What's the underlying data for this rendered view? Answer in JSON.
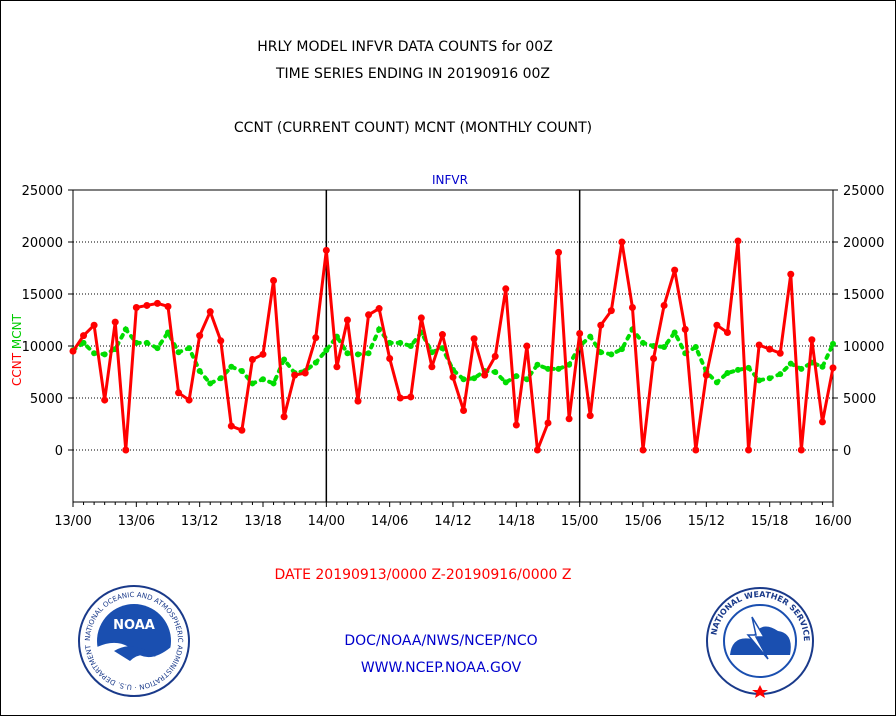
{
  "header": {
    "title_line1": "HRLY MODEL INFVR DATA COUNTS for 00Z",
    "title_line2": "TIME SERIES ENDING IN 20190916 00Z",
    "subtitle": "CCNT (CURRENT COUNT) MCNT (MONTHLY COUNT)"
  },
  "footer": {
    "date_range": "DATE 20190913/0000 Z-20190916/0000 Z",
    "org_line": "DOC/NOAA/NWS/NCEP/NCO",
    "url_line": "WWW.NCEP.NOAA.GOV",
    "noaa_logo_text": "NOAA",
    "noaa_ring_text": "NATIONAL OCEANIC AND ATMOSPHERIC ADMINISTRATION · U.S. DEPARTMENT OF COMMERCE",
    "nws_ring_text": "NATIONAL WEATHER SERVICE"
  },
  "colors": {
    "ccnt": "#ff0000",
    "mcnt": "#00dd00",
    "label_blue": "#0000cc",
    "date_red": "#ff0000"
  },
  "chart_data": {
    "type": "line",
    "title": "INFVR",
    "ylabel_left_ccnt": "CCNT",
    "ylabel_left_mcnt": "MCNT",
    "ylim": [
      -5000,
      25000
    ],
    "yticks": [
      0,
      5000,
      10000,
      15000,
      20000,
      25000
    ],
    "xlim": [
      0,
      72
    ],
    "x_ticks": [
      {
        "x": 0,
        "label": "13/00"
      },
      {
        "x": 6,
        "label": "13/06"
      },
      {
        "x": 12,
        "label": "13/12"
      },
      {
        "x": 18,
        "label": "13/18"
      },
      {
        "x": 24,
        "label": "14/00"
      },
      {
        "x": 30,
        "label": "14/06"
      },
      {
        "x": 36,
        "label": "14/12"
      },
      {
        "x": 42,
        "label": "14/18"
      },
      {
        "x": 48,
        "label": "15/00"
      },
      {
        "x": 54,
        "label": "15/06"
      },
      {
        "x": 60,
        "label": "15/12"
      },
      {
        "x": 66,
        "label": "15/18"
      },
      {
        "x": 72,
        "label": "16/00"
      }
    ],
    "day_boundaries": [
      24,
      48
    ],
    "grid": true,
    "series": [
      {
        "name": "CCNT",
        "style": "solid",
        "values": [
          9500,
          11000,
          12000,
          4800,
          12300,
          0,
          13700,
          13900,
          14100,
          13800,
          5500,
          4800,
          11000,
          13300,
          10500,
          2300,
          1900,
          8700,
          9200,
          16300,
          3200,
          7200,
          7400,
          10800,
          19200,
          8000,
          12500,
          4700,
          13000,
          13600,
          8800,
          5000,
          5100,
          12700,
          8000,
          11100,
          7000,
          3800,
          10700,
          7200,
          9000,
          15500,
          2400,
          10000,
          0,
          2600,
          19000,
          3000,
          11200,
          3300,
          12000,
          13400,
          20000,
          13700,
          0,
          8800,
          13900,
          17300,
          11600,
          0,
          7200,
          12000,
          11300,
          20100,
          0,
          10100,
          9700,
          9300,
          16900,
          0,
          10600,
          2700,
          7900
        ]
      },
      {
        "name": "MCNT",
        "style": "dotted",
        "values": [
          9600,
          10300,
          9300,
          9200,
          9700,
          11600,
          10300,
          10300,
          9800,
          11300,
          9400,
          9800,
          7600,
          6400,
          6900,
          8000,
          7600,
          6400,
          6800,
          6400,
          8700,
          7400,
          7600,
          8400,
          9600,
          10900,
          9300,
          9200,
          9300,
          11600,
          10300,
          10300,
          10000,
          11300,
          9400,
          9800,
          7700,
          6800,
          6900,
          7600,
          7500,
          6500,
          7100,
          6800,
          8200,
          7800,
          7800,
          8200,
          10000,
          10900,
          9400,
          9200,
          9700,
          11600,
          10300,
          10000,
          9900,
          11300,
          9300,
          9900,
          7500,
          6500,
          7400,
          7700,
          7900,
          6700,
          6900,
          7300,
          8300,
          7800,
          8400,
          8000,
          10200
        ]
      }
    ]
  }
}
